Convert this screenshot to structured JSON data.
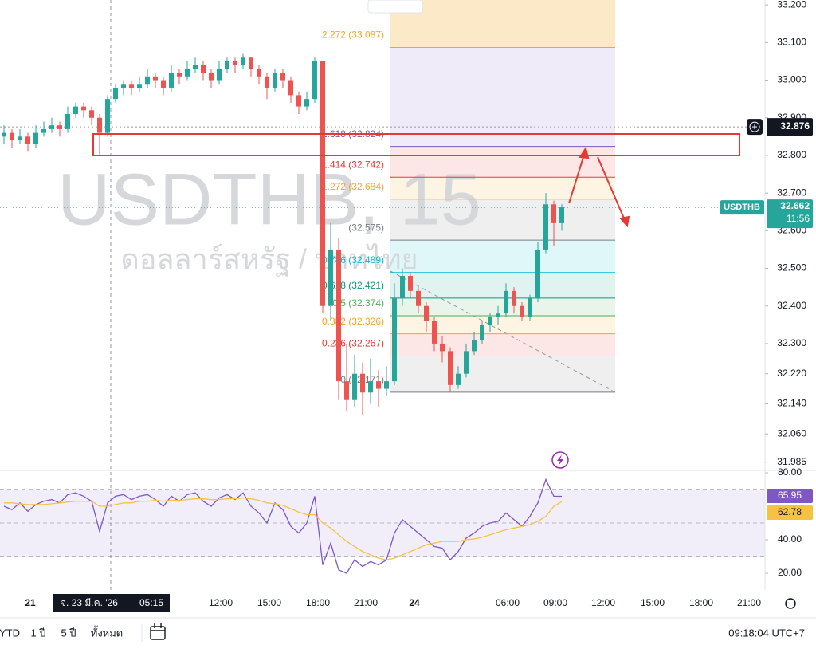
{
  "chart_data": {
    "type": "candlestick",
    "watermark": "USDTHB, 15",
    "watermark_subtitle": "ดอลลาร์สหรัฐ / บาทไทย",
    "up_color": "#26a69a",
    "down_color": "#ef5350",
    "ylim": [
      31.963,
      33.213
    ],
    "yticks": [
      {
        "value": 33.2,
        "label": "33.200"
      },
      {
        "value": 33.1,
        "label": "33.100"
      },
      {
        "value": 33.0,
        "label": "33.000"
      },
      {
        "value": 32.9,
        "label": "32.900"
      },
      {
        "value": 32.8,
        "label": "32.800"
      },
      {
        "value": 32.7,
        "label": "32.700"
      },
      {
        "value": 32.6,
        "label": "32.600"
      },
      {
        "value": 32.5,
        "label": "32.500"
      },
      {
        "value": 32.4,
        "label": "32.400"
      },
      {
        "value": 32.3,
        "label": "32.300"
      },
      {
        "value": 32.22,
        "label": "32.220"
      },
      {
        "value": 32.14,
        "label": "32.140"
      },
      {
        "value": 32.06,
        "label": "32.060"
      },
      31.985
    ],
    "candles": [
      [
        32.85,
        32.88,
        32.83,
        32.86
      ],
      [
        32.86,
        32.87,
        32.82,
        32.84
      ],
      [
        32.84,
        32.87,
        32.83,
        32.85
      ],
      [
        32.85,
        32.86,
        32.81,
        32.83
      ],
      [
        32.83,
        32.88,
        32.82,
        32.86
      ],
      [
        32.86,
        32.89,
        32.85,
        32.87
      ],
      [
        32.87,
        32.9,
        32.86,
        32.88
      ],
      [
        32.88,
        32.89,
        32.85,
        32.87
      ],
      [
        32.87,
        32.93,
        32.86,
        32.91
      ],
      [
        32.91,
        32.94,
        32.9,
        32.93
      ],
      [
        32.93,
        32.94,
        32.9,
        32.92
      ],
      [
        32.92,
        32.93,
        32.88,
        32.9
      ],
      [
        32.9,
        32.91,
        32.8,
        32.86
      ],
      [
        32.86,
        32.96,
        32.85,
        32.95
      ],
      [
        32.95,
        32.99,
        32.94,
        32.98
      ],
      [
        32.98,
        33.0,
        32.96,
        32.99
      ],
      [
        32.99,
        33.0,
        32.96,
        32.98
      ],
      [
        32.98,
        33.01,
        32.97,
        32.99
      ],
      [
        32.99,
        33.03,
        32.98,
        33.01
      ],
      [
        33.01,
        33.02,
        32.98,
        33.0
      ],
      [
        33.0,
        33.01,
        32.96,
        32.98
      ],
      [
        32.98,
        33.04,
        32.97,
        33.02
      ],
      [
        33.02,
        33.03,
        32.99,
        33.01
      ],
      [
        33.01,
        33.05,
        33.0,
        33.03
      ],
      [
        33.03,
        33.06,
        33.02,
        33.04
      ],
      [
        33.04,
        33.05,
        33.0,
        33.02
      ],
      [
        33.02,
        33.03,
        32.98,
        33.0
      ],
      [
        33.0,
        33.05,
        32.99,
        33.03
      ],
      [
        33.03,
        33.06,
        33.02,
        33.05
      ],
      [
        33.05,
        33.06,
        33.02,
        33.04
      ],
      [
        33.04,
        33.07,
        33.03,
        33.06
      ],
      [
        33.06,
        33.06,
        33.01,
        33.03
      ],
      [
        33.03,
        33.04,
        32.99,
        33.01
      ],
      [
        33.01,
        33.02,
        32.95,
        32.98
      ],
      [
        32.98,
        33.03,
        32.97,
        33.02
      ],
      [
        33.02,
        33.03,
        32.98,
        33.0
      ],
      [
        33.0,
        33.01,
        32.94,
        32.96
      ],
      [
        32.96,
        32.97,
        32.91,
        32.93
      ],
      [
        32.93,
        32.97,
        32.92,
        32.95
      ],
      [
        32.95,
        33.06,
        32.94,
        33.05
      ],
      [
        33.05,
        33.05,
        32.38,
        32.4
      ],
      [
        32.4,
        32.62,
        32.36,
        32.55
      ],
      [
        32.55,
        32.58,
        32.15,
        32.2
      ],
      [
        32.2,
        32.3,
        32.12,
        32.15
      ],
      [
        32.15,
        32.27,
        32.13,
        32.22
      ],
      [
        32.22,
        32.25,
        32.11,
        32.17
      ],
      [
        32.17,
        32.26,
        32.14,
        32.2
      ],
      [
        32.2,
        32.23,
        32.13,
        32.18
      ],
      [
        32.18,
        32.24,
        32.16,
        32.2
      ],
      [
        32.2,
        32.46,
        32.19,
        32.42
      ],
      [
        32.42,
        32.5,
        32.4,
        32.48
      ],
      [
        32.48,
        32.49,
        32.42,
        32.44
      ],
      [
        32.44,
        32.45,
        32.38,
        32.4
      ],
      [
        32.4,
        32.41,
        32.33,
        32.36
      ],
      [
        32.36,
        32.37,
        32.28,
        32.3
      ],
      [
        32.3,
        32.32,
        32.25,
        32.28
      ],
      [
        32.28,
        32.29,
        32.17,
        32.19
      ],
      [
        32.19,
        32.24,
        32.18,
        32.22
      ],
      [
        32.22,
        32.3,
        32.21,
        32.28
      ],
      [
        32.28,
        32.33,
        32.27,
        32.31
      ],
      [
        32.31,
        32.36,
        32.3,
        32.35
      ],
      [
        32.35,
        32.38,
        32.33,
        32.37
      ],
      [
        32.37,
        32.4,
        32.35,
        32.38
      ],
      [
        32.38,
        32.46,
        32.37,
        32.44
      ],
      [
        32.44,
        32.45,
        32.38,
        32.4
      ],
      [
        32.4,
        32.41,
        32.36,
        32.37
      ],
      [
        32.37,
        32.43,
        32.36,
        32.42
      ],
      [
        32.42,
        32.57,
        32.41,
        32.55
      ],
      [
        32.55,
        32.7,
        32.54,
        32.67
      ],
      [
        32.67,
        32.68,
        32.56,
        32.62
      ],
      [
        32.62,
        32.67,
        32.6,
        32.662
      ]
    ],
    "fib_levels": [
      {
        "label": "2.272 (33.087)",
        "value": 33.087,
        "color": "#f5a623"
      },
      {
        "label": "1.618 (32.824)",
        "value": 32.824,
        "color": "#7e57c2"
      },
      {
        "label": "1.414 (32.742)",
        "value": 32.742,
        "color": "#e53935"
      },
      {
        "label": "1.272 (32.684)",
        "value": 32.684,
        "color": "#f5a623"
      },
      {
        "label": "(32.575)",
        "value": 32.575,
        "color": "#787b86"
      },
      {
        "label": "0.786 (32.489)",
        "value": 32.489,
        "color": "#00bcd4"
      },
      {
        "label": "0.618 (32.421)",
        "value": 32.421,
        "color": "#089981"
      },
      {
        "label": "0.5 (32.374)",
        "value": 32.374,
        "color": "#4caf50"
      },
      {
        "label": "0.382 (32.326)",
        "value": 32.326,
        "color": "#f5a623"
      },
      {
        "label": "0.236 (32.267)",
        "value": 32.267,
        "color": "#e53935"
      },
      {
        "label": "0 (32.171)",
        "value": 32.171,
        "color": "#787b86"
      }
    ],
    "marked_level": 32.876,
    "price_tag": "USDTHB",
    "countdown": "11:56",
    "time_labels": [
      "21",
      "12:00",
      "15:00",
      "18:00",
      "21:00",
      "24",
      "06:00",
      "09:00",
      "12:00",
      "15:00",
      "18:00",
      "21:00"
    ],
    "crosshair_date": "จ. 23 มี.ค. '26",
    "crosshair_time": "05:15",
    "rsi": {
      "ylim": [
        14.76,
        80.48
      ],
      "yticks": [
        {
          "value": 80,
          "label": "80.00"
        },
        {
          "value": 40,
          "label": "40.00"
        },
        {
          "value": 20,
          "label": "20.00"
        }
      ],
      "levels": [
        70,
        50,
        30
      ],
      "series": [
        {
          "color": "#7e57c2",
          "values": [
            60,
            58,
            62,
            57,
            61,
            63,
            64,
            62,
            67,
            68,
            66,
            63,
            45,
            62,
            66,
            67,
            64,
            66,
            67,
            64,
            60,
            66,
            63,
            67,
            68,
            63,
            60,
            65,
            67,
            64,
            68,
            60,
            56,
            50,
            62,
            58,
            48,
            44,
            50,
            66,
            25,
            38,
            22,
            20,
            28,
            24,
            27,
            25,
            28,
            44,
            52,
            48,
            44,
            40,
            36,
            35,
            28,
            33,
            41,
            44,
            48,
            50,
            51,
            56,
            52,
            48,
            54,
            62,
            76,
            66,
            65.95
          ]
        },
        {
          "color": "#f5c242",
          "values": [
            62,
            62,
            61.5,
            61,
            61,
            61,
            61.5,
            62,
            62.5,
            63,
            63,
            63,
            60,
            60,
            61,
            62,
            62,
            63,
            63,
            63.5,
            63,
            63.5,
            63.5,
            64,
            64.5,
            64.5,
            64,
            64,
            64.5,
            64.5,
            65,
            64.5,
            63.5,
            62,
            61.5,
            60.5,
            58.5,
            56.5,
            55,
            55,
            50,
            47,
            43,
            39,
            36,
            33,
            31,
            29,
            28,
            29,
            31,
            33,
            35,
            37,
            38,
            39,
            39,
            39,
            40,
            40.5,
            41.5,
            43,
            44.5,
            46,
            47,
            48,
            49,
            51,
            54,
            60,
            62.78
          ]
        }
      ]
    },
    "toolbar": [
      "YTD",
      "1 ปี",
      "5 ปี",
      "ทั้งหมด"
    ],
    "clock": "09:18:04 UTC+7"
  }
}
